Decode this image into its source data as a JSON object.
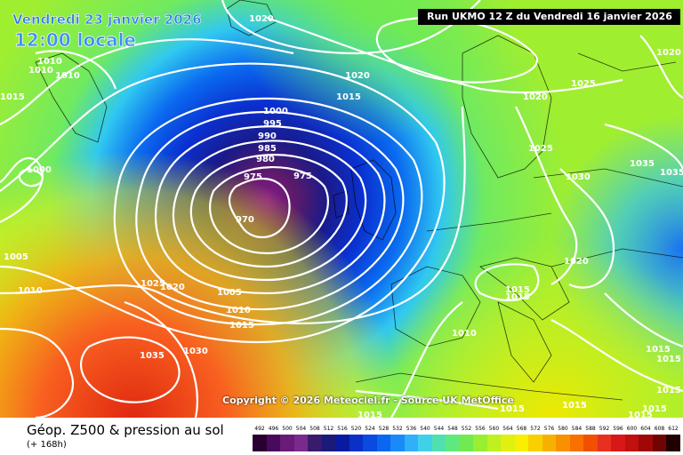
{
  "header": {
    "valid_date": "Vendredi 23 janvier 2026",
    "valid_time": "12:00 locale",
    "run_info": "Run UKMO 12 Z du Vendredi 16 janvier 2026"
  },
  "footer": {
    "parameter": "Géop. Z500 & pression au sol",
    "lead_time": "(+ 168h)",
    "copyright": "Copyright © 2026 Meteociel.fr - Source UK MetOffice"
  },
  "legend": {
    "unit_values": [
      "492",
      "496",
      "500",
      "504",
      "508",
      "512",
      "516",
      "520",
      "524",
      "528",
      "532",
      "536",
      "540",
      "544",
      "548",
      "552",
      "556",
      "560",
      "564",
      "568",
      "572",
      "576",
      "580",
      "584",
      "588",
      "592",
      "596",
      "600",
      "604",
      "608",
      "612"
    ],
    "colors": [
      "#2a0030",
      "#4a0a5c",
      "#6a1a78",
      "#7a2a8e",
      "#3a1a6a",
      "#1a1a7a",
      "#0a1aa0",
      "#0a30c8",
      "#0a4ae0",
      "#0a68f0",
      "#1a8af8",
      "#30b0f8",
      "#40d0e8",
      "#50e0b0",
      "#60e880",
      "#70ea50",
      "#98ee30",
      "#c0f020",
      "#e0f010",
      "#f8f000",
      "#f8d000",
      "#f8b000",
      "#f89000",
      "#f87000",
      "#f05000",
      "#e83020",
      "#d81818",
      "#c01010",
      "#a00808",
      "#700404",
      "#200000"
    ]
  },
  "isobar_labels": [
    "1020",
    "1010",
    "1010",
    "1015",
    "1010",
    "1000",
    "1005",
    "1010",
    "1025",
    "1020",
    "1020",
    "1015",
    "1000",
    "995",
    "990",
    "985",
    "980",
    "975",
    "975",
    "970",
    "1005",
    "1010",
    "1015",
    "1035",
    "1030",
    "1020",
    "1025",
    "1020",
    "1025",
    "1030",
    "1035",
    "1035",
    "1020",
    "1015",
    "1015",
    "1010",
    "1015",
    "1015",
    "1015",
    "1015",
    "1015",
    "1015",
    "1015",
    "1015"
  ]
}
